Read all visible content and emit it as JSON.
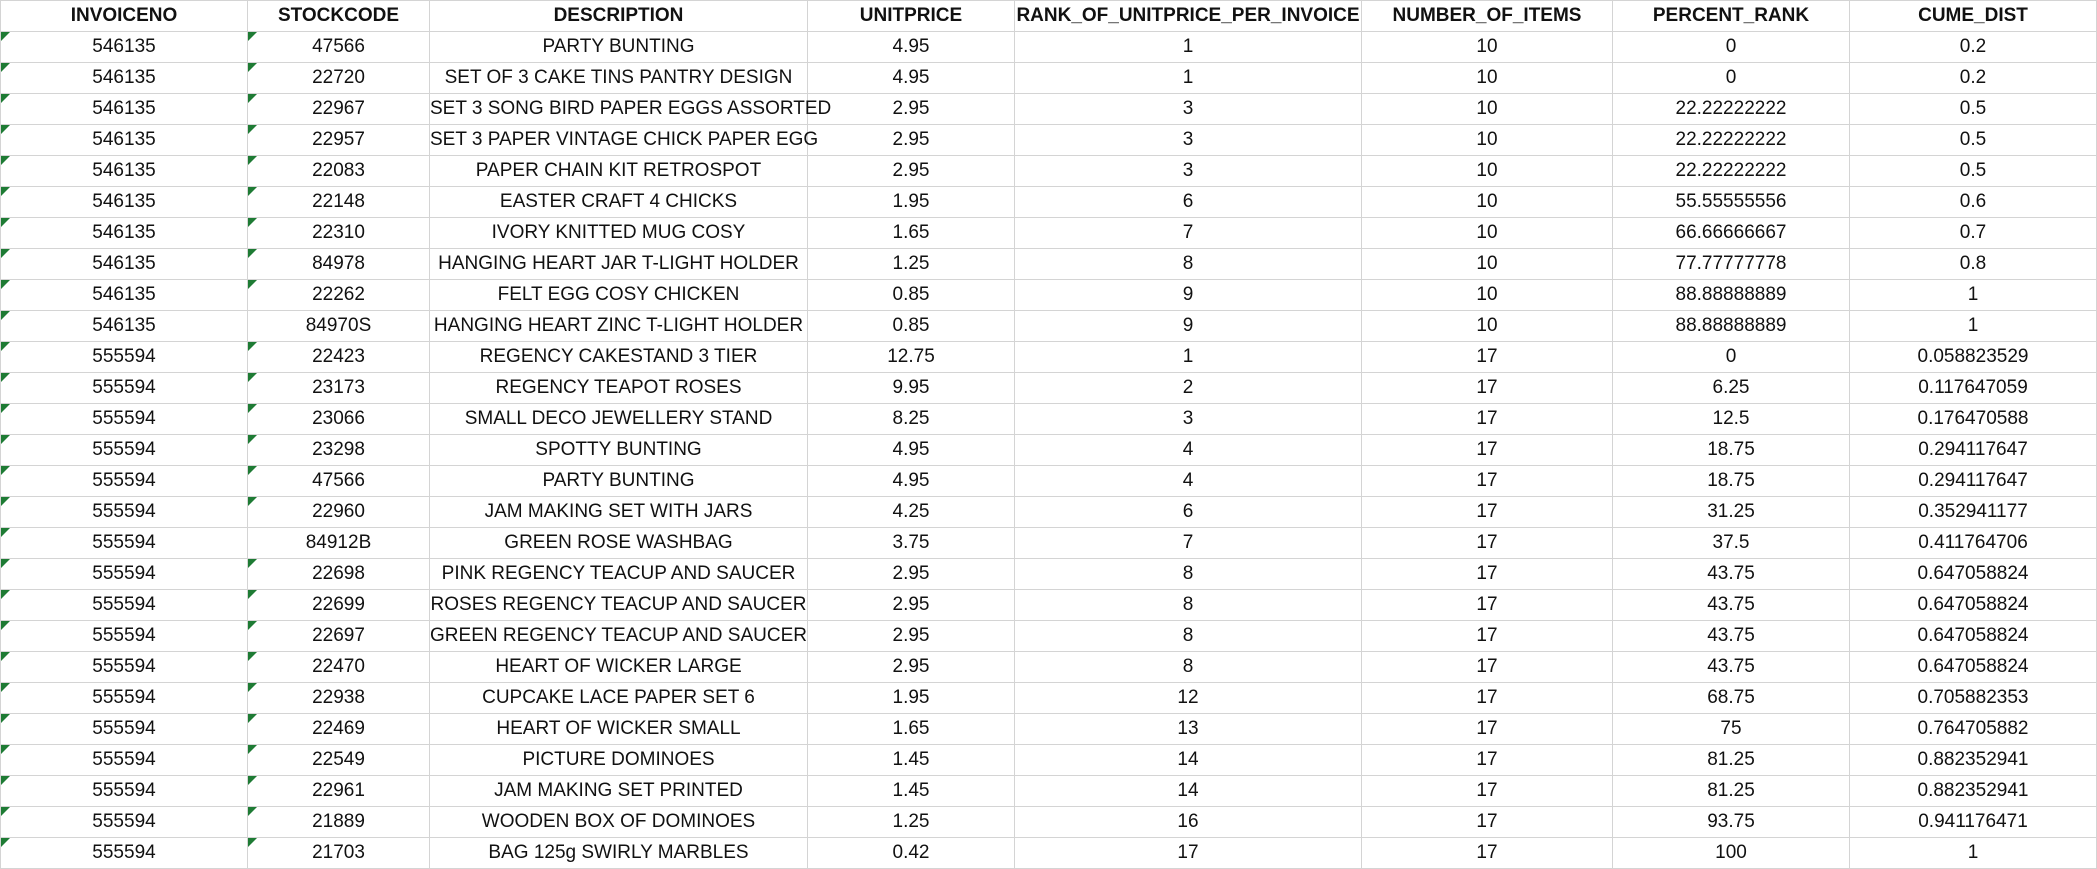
{
  "sheet": {
    "headers": [
      "INVOICENO",
      "STOCKCODE",
      "DESCRIPTION",
      "UNITPRICE",
      "RANK_OF_UNITPRICE_PER_INVOICE",
      "NUMBER_OF_ITEMS",
      "PERCENT_RANK",
      "CUME_DIST"
    ],
    "rows": [
      {
        "cells": [
          "546135",
          "47566",
          "PARTY BUNTING",
          "4.95",
          "1",
          "10",
          "0",
          "0.2"
        ],
        "flags": [
          true,
          true
        ]
      },
      {
        "cells": [
          "546135",
          "22720",
          "SET OF 3 CAKE TINS PANTRY DESIGN",
          "4.95",
          "1",
          "10",
          "0",
          "0.2"
        ],
        "flags": [
          true,
          true
        ]
      },
      {
        "cells": [
          "546135",
          "22967",
          "SET 3 SONG BIRD PAPER EGGS ASSORTED",
          "2.95",
          "3",
          "10",
          "22.22222222",
          "0.5"
        ],
        "flags": [
          true,
          true
        ]
      },
      {
        "cells": [
          "546135",
          "22957",
          "SET 3 PAPER VINTAGE CHICK PAPER EGG",
          "2.95",
          "3",
          "10",
          "22.22222222",
          "0.5"
        ],
        "flags": [
          true,
          true
        ]
      },
      {
        "cells": [
          "546135",
          "22083",
          "PAPER CHAIN KIT RETROSPOT",
          "2.95",
          "3",
          "10",
          "22.22222222",
          "0.5"
        ],
        "flags": [
          true,
          true
        ]
      },
      {
        "cells": [
          "546135",
          "22148",
          "EASTER CRAFT 4 CHICKS",
          "1.95",
          "6",
          "10",
          "55.55555556",
          "0.6"
        ],
        "flags": [
          true,
          true
        ]
      },
      {
        "cells": [
          "546135",
          "22310",
          "IVORY KNITTED MUG COSY",
          "1.65",
          "7",
          "10",
          "66.66666667",
          "0.7"
        ],
        "flags": [
          true,
          true
        ]
      },
      {
        "cells": [
          "546135",
          "84978",
          "HANGING HEART JAR T-LIGHT HOLDER",
          "1.25",
          "8",
          "10",
          "77.77777778",
          "0.8"
        ],
        "flags": [
          true,
          true
        ]
      },
      {
        "cells": [
          "546135",
          "22262",
          "FELT EGG COSY CHICKEN",
          "0.85",
          "9",
          "10",
          "88.88888889",
          "1"
        ],
        "flags": [
          true,
          true
        ]
      },
      {
        "cells": [
          "546135",
          "84970S",
          "HANGING HEART ZINC T-LIGHT HOLDER",
          "0.85",
          "9",
          "10",
          "88.88888889",
          "1"
        ],
        "flags": [
          true,
          false
        ]
      },
      {
        "cells": [
          "555594",
          "22423",
          "REGENCY CAKESTAND 3 TIER",
          "12.75",
          "1",
          "17",
          "0",
          "0.058823529"
        ],
        "flags": [
          true,
          true
        ]
      },
      {
        "cells": [
          "555594",
          "23173",
          "REGENCY TEAPOT ROSES",
          "9.95",
          "2",
          "17",
          "6.25",
          "0.117647059"
        ],
        "flags": [
          true,
          true
        ]
      },
      {
        "cells": [
          "555594",
          "23066",
          "SMALL DECO JEWELLERY STAND",
          "8.25",
          "3",
          "17",
          "12.5",
          "0.176470588"
        ],
        "flags": [
          true,
          true
        ]
      },
      {
        "cells": [
          "555594",
          "23298",
          "SPOTTY BUNTING",
          "4.95",
          "4",
          "17",
          "18.75",
          "0.294117647"
        ],
        "flags": [
          true,
          true
        ]
      },
      {
        "cells": [
          "555594",
          "47566",
          "PARTY BUNTING",
          "4.95",
          "4",
          "17",
          "18.75",
          "0.294117647"
        ],
        "flags": [
          true,
          true
        ]
      },
      {
        "cells": [
          "555594",
          "22960",
          "JAM MAKING SET WITH JARS",
          "4.25",
          "6",
          "17",
          "31.25",
          "0.352941177"
        ],
        "flags": [
          true,
          true
        ]
      },
      {
        "cells": [
          "555594",
          "84912B",
          "GREEN ROSE WASHBAG",
          "3.75",
          "7",
          "17",
          "37.5",
          "0.411764706"
        ],
        "flags": [
          true,
          false
        ]
      },
      {
        "cells": [
          "555594",
          "22698",
          "PINK REGENCY TEACUP AND SAUCER",
          "2.95",
          "8",
          "17",
          "43.75",
          "0.647058824"
        ],
        "flags": [
          true,
          true
        ]
      },
      {
        "cells": [
          "555594",
          "22699",
          "ROSES REGENCY TEACUP AND SAUCER",
          "2.95",
          "8",
          "17",
          "43.75",
          "0.647058824"
        ],
        "flags": [
          true,
          true
        ]
      },
      {
        "cells": [
          "555594",
          "22697",
          "GREEN REGENCY TEACUP AND SAUCER",
          "2.95",
          "8",
          "17",
          "43.75",
          "0.647058824"
        ],
        "flags": [
          true,
          true
        ]
      },
      {
        "cells": [
          "555594",
          "22470",
          "HEART OF WICKER LARGE",
          "2.95",
          "8",
          "17",
          "43.75",
          "0.647058824"
        ],
        "flags": [
          true,
          true
        ]
      },
      {
        "cells": [
          "555594",
          "22938",
          "CUPCAKE LACE PAPER SET 6",
          "1.95",
          "12",
          "17",
          "68.75",
          "0.705882353"
        ],
        "flags": [
          true,
          true
        ]
      },
      {
        "cells": [
          "555594",
          "22469",
          "HEART OF WICKER SMALL",
          "1.65",
          "13",
          "17",
          "75",
          "0.764705882"
        ],
        "flags": [
          true,
          true
        ]
      },
      {
        "cells": [
          "555594",
          "22549",
          "PICTURE DOMINOES",
          "1.45",
          "14",
          "17",
          "81.25",
          "0.882352941"
        ],
        "flags": [
          true,
          true
        ]
      },
      {
        "cells": [
          "555594",
          "22961",
          "JAM MAKING SET PRINTED",
          "1.45",
          "14",
          "17",
          "81.25",
          "0.882352941"
        ],
        "flags": [
          true,
          true
        ]
      },
      {
        "cells": [
          "555594",
          "21889",
          "WOODEN BOX OF DOMINOES",
          "1.25",
          "16",
          "17",
          "93.75",
          "0.941176471"
        ],
        "flags": [
          true,
          true
        ]
      },
      {
        "cells": [
          "555594",
          "21703",
          "BAG 125g SWIRLY MARBLES",
          "0.42",
          "17",
          "17",
          "100",
          "1"
        ],
        "flags": [
          true,
          true
        ]
      }
    ]
  }
}
